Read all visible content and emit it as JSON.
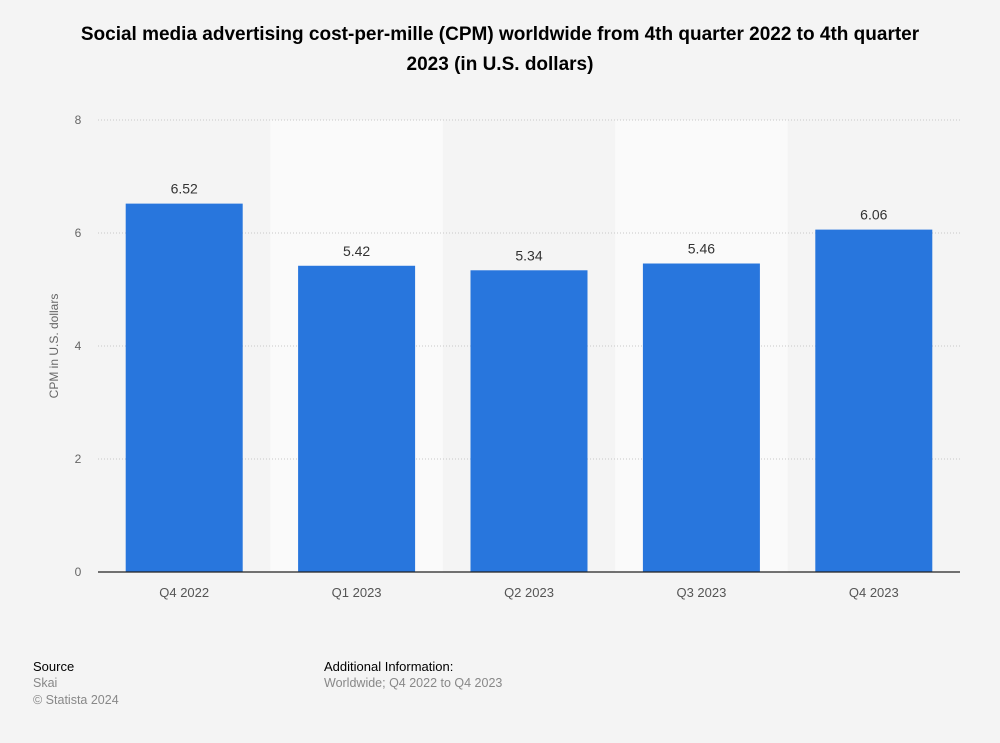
{
  "chart_data": {
    "type": "bar",
    "title": "Social media advertising cost-per-mille (CPM) worldwide from 4th quarter 2022 to 4th quarter 2023 (in U.S. dollars)",
    "xlabel": "",
    "ylabel": "CPM in U.S. dollars",
    "categories": [
      "Q4 2022",
      "Q1 2023",
      "Q2 2023",
      "Q3 2023",
      "Q4 2023"
    ],
    "values": [
      6.52,
      5.42,
      5.34,
      5.46,
      6.06
    ],
    "value_labels": [
      "6.52",
      "5.42",
      "5.34",
      "5.46",
      "6.06"
    ],
    "ylim": [
      0,
      8
    ],
    "yticks": [
      0,
      2,
      4,
      6,
      8
    ],
    "grid": true,
    "colors": {
      "bar": "#2876dd",
      "stripe": "#fafafa",
      "background": "#f4f4f4"
    }
  },
  "footer": {
    "source_heading": "Source",
    "source": "Skai",
    "copyright": "© Statista 2024",
    "info_heading": "Additional Information:",
    "info": "Worldwide; Q4 2022 to Q4 2023"
  }
}
